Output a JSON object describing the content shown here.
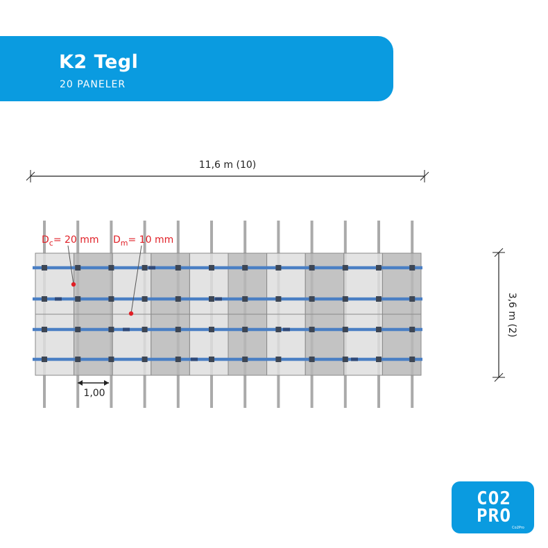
{
  "header": {
    "title": "K2 Tegl",
    "subtitle": "20 PANELER"
  },
  "dimensions": {
    "width_label": "11,6 m (10)",
    "height_label": "3,6 m (2)",
    "spacing_label": "1,00"
  },
  "annotations": {
    "dc": {
      "symbol": "D",
      "subscript": "c",
      "value": "= 20 mm"
    },
    "dm": {
      "symbol": "D",
      "subscript": "m",
      "value": "= 10 mm"
    }
  },
  "layout": {
    "panel_columns": 10,
    "panel_rows": 2,
    "rail_count": 4,
    "rafter_count": 12
  },
  "colors": {
    "brand": "#0a9be0",
    "rail": "#4a7fc4",
    "panel_light": "#dedede",
    "panel_dark": "#b8b8b8",
    "rafter": "#aaaaaa",
    "clamp": "#3d4654",
    "annotation": "#e01f26",
    "dimension": "#222222"
  },
  "logo": {
    "top": "CO2",
    "bottom": "PRO",
    "caption": "Co2Pro"
  }
}
